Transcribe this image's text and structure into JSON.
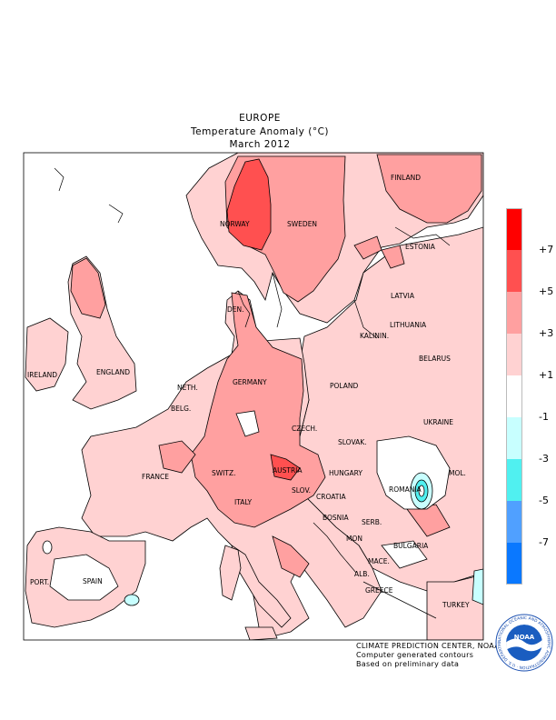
{
  "header": {
    "region": "EUROPE",
    "variable": "Temperature Anomaly (°C)",
    "period": "March 2012"
  },
  "countries": [
    {
      "name": "NORWAY"
    },
    {
      "name": "SWEDEN"
    },
    {
      "name": "FINLAND"
    },
    {
      "name": "ESTONIA"
    },
    {
      "name": "LATVIA"
    },
    {
      "name": "LITHUANIA"
    },
    {
      "name": "KALININ."
    },
    {
      "name": "DEN."
    },
    {
      "name": "IRELAND"
    },
    {
      "name": "ENGLAND"
    },
    {
      "name": "NETH."
    },
    {
      "name": "BELG."
    },
    {
      "name": "GERMANY"
    },
    {
      "name": "POLAND"
    },
    {
      "name": "BELARUS"
    },
    {
      "name": "CZECH."
    },
    {
      "name": "SLOVAK."
    },
    {
      "name": "UKRAINE"
    },
    {
      "name": "FRANCE"
    },
    {
      "name": "SWITZ."
    },
    {
      "name": "AUSTRIA"
    },
    {
      "name": "HUNGARY"
    },
    {
      "name": "MOL."
    },
    {
      "name": "ROMANIA"
    },
    {
      "name": "SLOV."
    },
    {
      "name": "CROATIA"
    },
    {
      "name": "ITALY"
    },
    {
      "name": "BOSNIA"
    },
    {
      "name": "SERB."
    },
    {
      "name": "MON"
    },
    {
      "name": "BULGARIA"
    },
    {
      "name": "MACE."
    },
    {
      "name": "ALB."
    },
    {
      "name": "GREECE"
    },
    {
      "name": "TURKEY"
    },
    {
      "name": "PORT."
    },
    {
      "name": "SPAIN"
    }
  ],
  "legend": {
    "unit": "°C",
    "bins": [
      {
        "color": "#ff0000"
      },
      {
        "color": "#ff5050"
      },
      {
        "color": "#ffa0a0"
      },
      {
        "color": "#ffd2d2"
      },
      {
        "color": "#ffffff"
      },
      {
        "color": "#c8ffff"
      },
      {
        "color": "#50f0f0"
      },
      {
        "color": "#50a0ff"
      },
      {
        "color": "#0a78ff"
      }
    ],
    "ticks": [
      "+7",
      "+5",
      "+3",
      "+1",
      "-1",
      "-3",
      "-5",
      "-7"
    ]
  },
  "footer": {
    "line1": "CLIMATE PREDICTION CENTER, NOAA",
    "line2": "Computer generated contours",
    "line3": "Based on preliminary data"
  },
  "logo": {
    "text": "NOAA",
    "ring_text": "NATIONAL OCEANIC AND ATMOSPHERIC ADMINISTRATION · U.S. DEPARTMENT OF COMMERCE"
  }
}
